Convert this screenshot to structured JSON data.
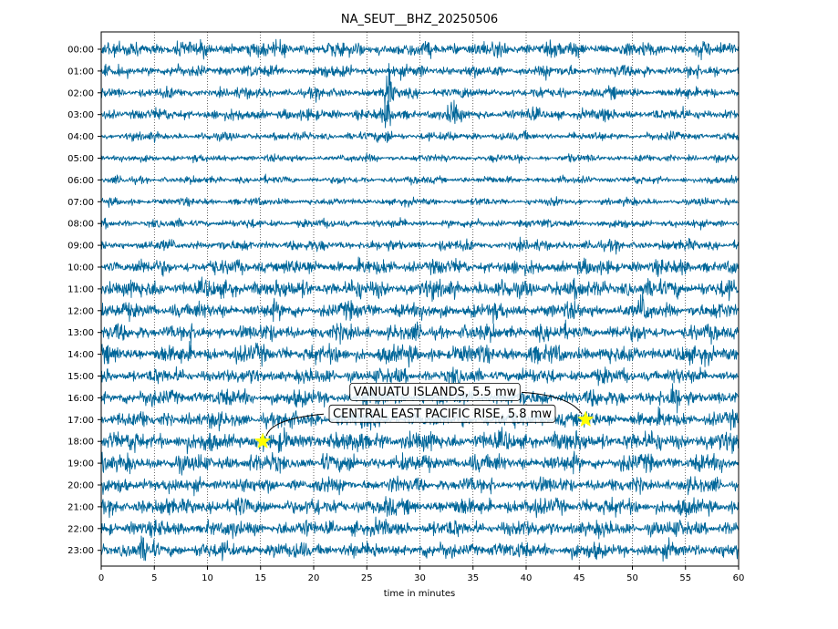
{
  "chart_data": {
    "type": "line",
    "title": "NA_SEUT__BHZ_20250506",
    "xlabel": "time in minutes",
    "ylabel": "",
    "xlim": [
      0,
      60
    ],
    "x_ticks": [
      0,
      5,
      10,
      15,
      20,
      25,
      30,
      35,
      40,
      45,
      50,
      55,
      60
    ],
    "x_tick_labels": [
      "0",
      "5",
      "10",
      "15",
      "20",
      "25",
      "30",
      "35",
      "40",
      "45",
      "50",
      "55",
      "60"
    ],
    "hour_labels": [
      "00:00",
      "01:00",
      "02:00",
      "03:00",
      "04:00",
      "05:00",
      "06:00",
      "07:00",
      "08:00",
      "09:00",
      "10:00",
      "11:00",
      "12:00",
      "13:00",
      "14:00",
      "15:00",
      "16:00",
      "17:00",
      "18:00",
      "19:00",
      "20:00",
      "21:00",
      "22:00",
      "23:00"
    ],
    "trace_color": "#006699",
    "vertical_grid": "dotted",
    "trace_amplitude": [
      0.28,
      0.22,
      0.2,
      0.22,
      0.16,
      0.14,
      0.14,
      0.14,
      0.16,
      0.2,
      0.28,
      0.34,
      0.3,
      0.3,
      0.34,
      0.28,
      0.3,
      0.3,
      0.36,
      0.32,
      0.28,
      0.32,
      0.3,
      0.3
    ],
    "spikes": [
      {
        "hour": 2,
        "minute": 27,
        "amp": 1.1
      },
      {
        "hour": 3,
        "minute": 27,
        "amp": 0.6
      },
      {
        "hour": 3,
        "minute": 33,
        "amp": 0.5
      },
      {
        "hour": 4,
        "minute": 27,
        "amp": 0.3
      },
      {
        "hour": 12,
        "minute": 51,
        "amp": 0.6
      },
      {
        "hour": 16,
        "minute": 54,
        "amp": 0.6
      },
      {
        "hour": 23,
        "minute": 4,
        "amp": 0.5
      }
    ],
    "events": [
      {
        "label": "VANUATU ISLANDS, 5.5 mw",
        "hour": 17,
        "minute": 45.6,
        "marker_color": "#ffff00"
      },
      {
        "label": "CENTRAL EAST PACIFIC RISE, 5.8 mw",
        "hour": 18,
        "minute": 15.2,
        "marker_color": "#ffff00"
      }
    ]
  }
}
